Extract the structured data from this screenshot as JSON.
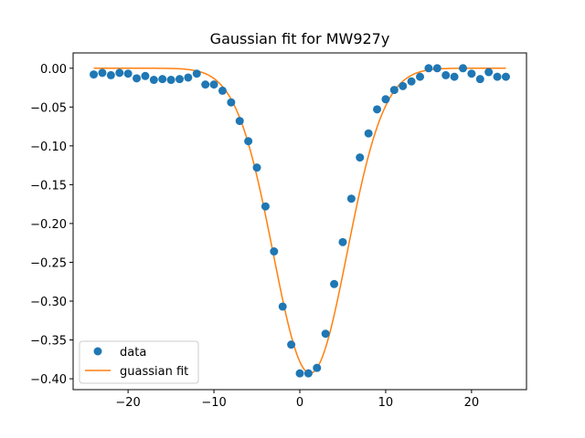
{
  "chart_data": {
    "type": "scatter",
    "title": "Gaussian fit for MW927y",
    "xlabel": "",
    "ylabel": "",
    "xlim": [
      -26.4,
      26.4
    ],
    "ylim": [
      -0.414,
      0.0197
    ],
    "xticks": [
      -20,
      -10,
      0,
      10,
      20
    ],
    "xtick_labels": [
      "−20",
      "−10",
      "0",
      "10",
      "20"
    ],
    "yticks": [
      0.0,
      -0.05,
      -0.1,
      -0.15,
      -0.2,
      -0.25,
      -0.3,
      -0.35,
      -0.4
    ],
    "ytick_labels": [
      "0.00",
      "−0.05",
      "−0.10",
      "−0.15",
      "−0.20",
      "−0.25",
      "−0.30",
      "−0.35",
      "−0.40"
    ],
    "grid": false,
    "legend_position": "lower left",
    "legend": [
      {
        "label": "data",
        "marker": "circle",
        "color": "#1f77b4"
      },
      {
        "label": "guassian fit",
        "marker": "line",
        "color": "#ff7f0e"
      }
    ],
    "series": [
      {
        "name": "data",
        "kind": "scatter",
        "color": "#1f77b4",
        "x": [
          -24,
          -23,
          -22,
          -21,
          -20,
          -19,
          -18,
          -17,
          -16,
          -15,
          -14,
          -13,
          -12,
          -11,
          -10,
          -9,
          -8,
          -7,
          -6,
          -5,
          -4,
          -3,
          -2,
          -1,
          0,
          1,
          2,
          3,
          4,
          5,
          6,
          7,
          8,
          9,
          10,
          11,
          12,
          13,
          14,
          15,
          16,
          17,
          18,
          19,
          20,
          21,
          22,
          23,
          24
        ],
        "y": [
          -0.008,
          -0.006,
          -0.009,
          -0.006,
          -0.007,
          -0.013,
          -0.01,
          -0.015,
          -0.014,
          -0.015,
          -0.014,
          -0.012,
          -0.007,
          -0.021,
          -0.021,
          -0.029,
          -0.044,
          -0.068,
          -0.094,
          -0.128,
          -0.178,
          -0.236,
          -0.307,
          -0.356,
          -0.393,
          -0.393,
          -0.386,
          -0.342,
          -0.278,
          -0.224,
          -0.168,
          -0.115,
          -0.084,
          -0.053,
          -0.04,
          -0.028,
          -0.023,
          -0.017,
          -0.011,
          0.0,
          0.0,
          -0.009,
          -0.011,
          0.0,
          -0.007,
          -0.014,
          -0.005,
          -0.011,
          -0.011
        ]
      },
      {
        "name": "guassian fit",
        "kind": "line",
        "color": "#ff7f0e",
        "function": "gaussian",
        "amplitude": -0.393,
        "center": 1.2,
        "sigma": 4.3,
        "x_range": [
          -24,
          24
        ]
      }
    ]
  }
}
